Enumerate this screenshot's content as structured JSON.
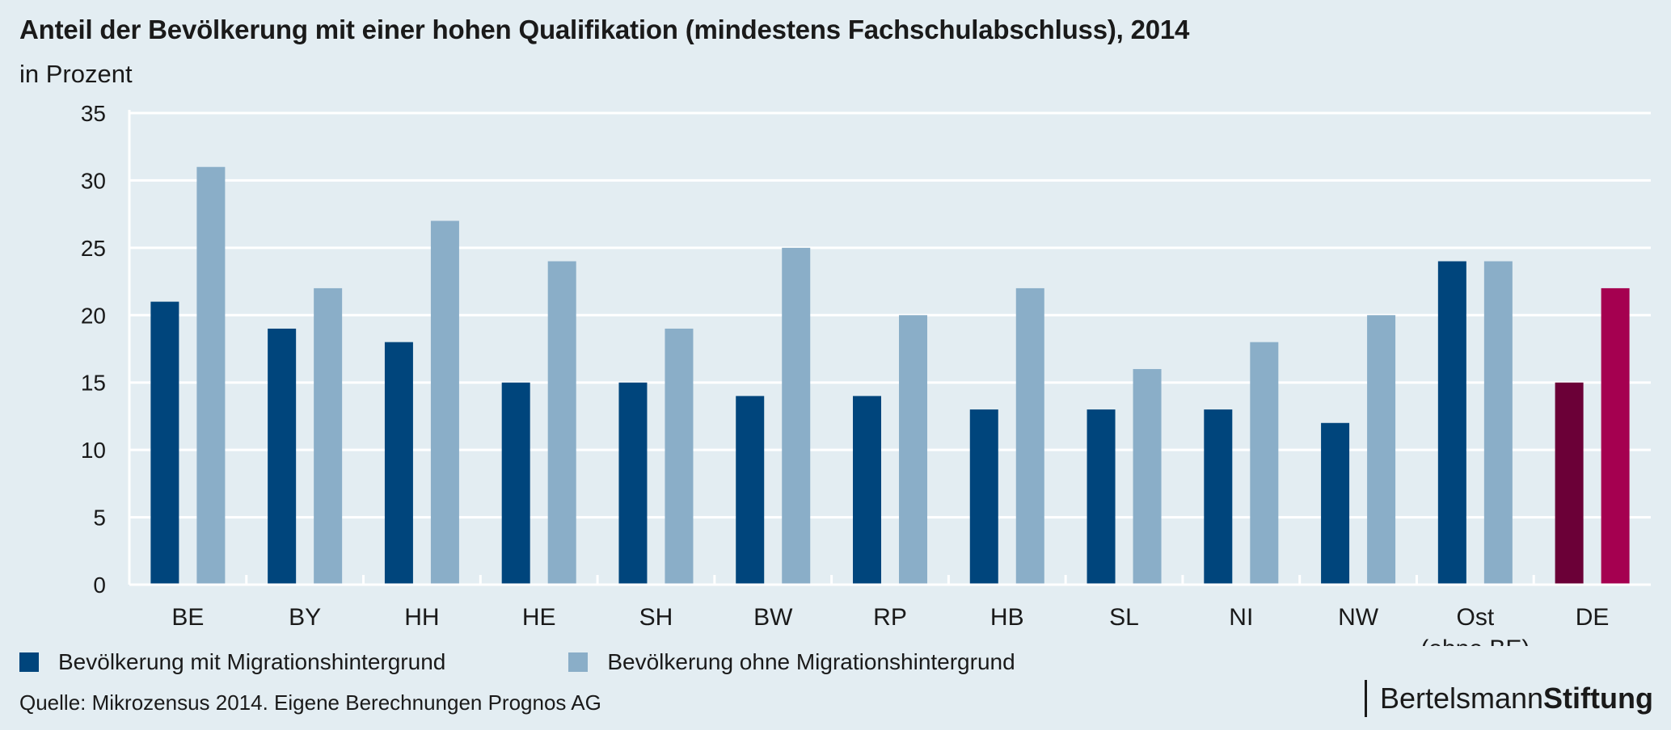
{
  "header": {
    "title": "Anteil der Bevölkerung mit einer hohen Qualifikation (mindestens Fachschulabschluss), 2014",
    "subtitle": "in Prozent"
  },
  "legend": {
    "items": [
      {
        "label": "Bevölkerung mit Migrationshintergrund",
        "color": "#00457c"
      },
      {
        "label": "Bevölkerung ohne Migrationshintergrund",
        "color": "#8aaec8"
      }
    ]
  },
  "footer": {
    "source": "Quelle: Mikrozensus 2014. Eigene Berechnungen Prognos AG",
    "brand_regular": "Bertelsmann",
    "brand_bold": "Stiftung"
  },
  "colors": {
    "series_with": "#00457c",
    "series_without": "#8aaec8",
    "highlight_with": "#6b0037",
    "highlight_without": "#a50050",
    "grid": "#ffffff"
  },
  "chart_data": {
    "type": "bar",
    "categories": [
      "BE",
      "BY",
      "HH",
      "HE",
      "SH",
      "BW",
      "RP",
      "HB",
      "SL",
      "NI",
      "NW",
      "Ost\n(ohne BE)",
      "DE"
    ],
    "series": [
      {
        "name": "Bevölkerung mit Migrationshintergrund",
        "values": [
          21,
          19,
          18,
          15,
          15,
          14,
          14,
          13,
          13,
          13,
          12,
          24,
          15
        ]
      },
      {
        "name": "Bevölkerung ohne Migrationshintergrund",
        "values": [
          31,
          22,
          27,
          24,
          19,
          25,
          20,
          22,
          16,
          18,
          20,
          24,
          22
        ]
      }
    ],
    "highlight_category": "DE",
    "ylim": [
      0,
      35
    ],
    "yticks": [
      0,
      5,
      10,
      15,
      20,
      25,
      30,
      35
    ],
    "grid": true,
    "legend_position": "bottom-left"
  }
}
